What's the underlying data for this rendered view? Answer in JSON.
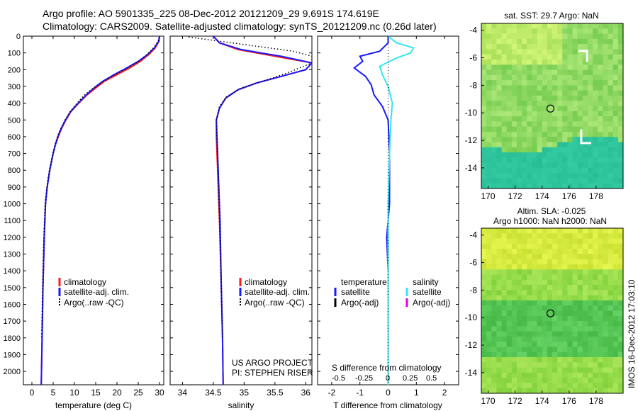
{
  "header": {
    "line1": "Argo profile: AO 5901335_225 08-Dec-2012 20121209_29 9.691S 174.619E",
    "line2": "Climatology: CARS2009. Satellite-adjusted climatology: synTS_20121209.nc (0.26d later)"
  },
  "watermark": "IMOS 16-Dec-2012 17:03:10",
  "colors": {
    "climatology": "#ff1a1a",
    "satellite": "#1a1aff",
    "argo": "#000000",
    "salinity_satellite": "#33e6f0",
    "salinity_argo": "#e600e6",
    "map_circle": "#000000"
  },
  "chart_data": [
    {
      "type": "line",
      "id": "temperature_profile",
      "xlabel": "temperature (deg C)",
      "ylabel": "",
      "xlim": [
        -2,
        31
      ],
      "ylim": [
        2080,
        0
      ],
      "xticks": [
        0,
        5,
        10,
        15,
        20,
        25,
        30
      ],
      "yticks": [
        0,
        100,
        200,
        300,
        400,
        500,
        600,
        700,
        800,
        900,
        1000,
        1100,
        1200,
        1300,
        1400,
        1500,
        1600,
        1700,
        1800,
        1900,
        2000
      ],
      "legend": [
        "climatology",
        "satellite-adj. clim.",
        "Argo(..raw -QC)"
      ],
      "series": [
        {
          "name": "climatology",
          "color": "#ff1a1a",
          "x": [
            30,
            29.9,
            29.0,
            27.5,
            25.5,
            23,
            20,
            17,
            15,
            13,
            11,
            9.2,
            8.0,
            7.0,
            6.2,
            5.5,
            5.0,
            4.2,
            3.6,
            3.2,
            2.9,
            2.6,
            2.4,
            2.2
          ],
          "y": [
            0,
            30,
            70,
            110,
            150,
            190,
            230,
            270,
            310,
            350,
            400,
            450,
            500,
            550,
            600,
            650,
            700,
            800,
            900,
            1000,
            1200,
            1500,
            1800,
            2080
          ]
        },
        {
          "name": "satellite-adj. clim.",
          "color": "#1a1aff",
          "x": [
            30,
            29.8,
            28.8,
            27.2,
            25.0,
            22.3,
            19.3,
            16.6,
            14.6,
            12.8,
            10.9,
            9.1,
            7.9,
            6.9,
            6.1,
            5.5,
            5.0,
            4.2,
            3.6,
            3.2,
            2.9,
            2.6,
            2.4,
            2.2
          ],
          "y": [
            0,
            30,
            70,
            110,
            150,
            190,
            230,
            270,
            310,
            350,
            400,
            450,
            500,
            550,
            600,
            650,
            700,
            800,
            900,
            1000,
            1200,
            1500,
            1800,
            2080
          ]
        },
        {
          "name": "Argo(..raw -QC)",
          "color": "#000000",
          "style": "dotted",
          "x": [
            30,
            29.7,
            28.6,
            27.0,
            25.2,
            22.5,
            19.5,
            16.8,
            14.4,
            12.4,
            10.6,
            9.0,
            7.8,
            6.8,
            6.0,
            5.4,
            4.9,
            4.1,
            3.5,
            3.1,
            2.8,
            2.5,
            2.3
          ],
          "y": [
            5,
            30,
            70,
            110,
            150,
            190,
            230,
            270,
            310,
            350,
            400,
            450,
            500,
            550,
            600,
            650,
            700,
            800,
            900,
            1000,
            1200,
            1500,
            1800
          ]
        }
      ]
    },
    {
      "type": "line",
      "id": "salinity_profile",
      "xlabel": "salinity",
      "ylabel": "",
      "xlim": [
        33.8,
        36.1
      ],
      "ylim": [
        2080,
        0
      ],
      "xticks": [
        34,
        34.5,
        35,
        35.5,
        36
      ],
      "legend": [
        "climatology",
        "satellite-adj. clim.",
        "Argo(..raw -QC)"
      ],
      "annotations": [
        "US ARGO PROJECT",
        "PI: STEPHEN RISER"
      ],
      "series": [
        {
          "name": "climatology",
          "color": "#ff1a1a",
          "x": [
            34.5,
            34.6,
            34.9,
            35.5,
            36.1,
            36.0,
            35.6,
            35.2,
            34.9,
            34.7,
            34.6,
            34.55,
            34.55,
            34.57,
            34.6,
            34.63,
            34.65,
            34.66
          ],
          "y": [
            0,
            40,
            80,
            120,
            160,
            200,
            240,
            280,
            320,
            370,
            430,
            500,
            600,
            800,
            1100,
            1500,
            1800,
            2080
          ]
        },
        {
          "name": "satellite-adj. clim.",
          "color": "#1a1aff",
          "x": [
            34.5,
            34.6,
            34.95,
            35.6,
            36.1,
            36.0,
            35.6,
            35.2,
            34.9,
            34.7,
            34.6,
            34.55,
            34.56,
            34.58,
            34.61,
            34.63,
            34.65,
            34.66
          ],
          "y": [
            0,
            40,
            80,
            120,
            160,
            200,
            240,
            280,
            320,
            370,
            430,
            500,
            600,
            800,
            1100,
            1500,
            1800,
            2080
          ]
        },
        {
          "name": "Argo(..raw -QC)",
          "color": "#000000",
          "style": "dotted",
          "x": [
            34.1,
            34.6,
            35.2,
            35.8,
            36.1,
            36.1,
            35.7,
            35.3,
            34.95,
            34.72,
            34.6,
            34.55,
            34.56,
            34.58,
            34.6,
            34.63,
            34.65
          ],
          "y": [
            5,
            30,
            60,
            90,
            120,
            160,
            220,
            270,
            310,
            360,
            420,
            500,
            600,
            800,
            1100,
            1500,
            1800
          ]
        }
      ]
    },
    {
      "type": "line",
      "id": "difference_profile",
      "xlabel": "T difference from climatology",
      "xlabel_top": "S difference from climatology",
      "xlim": [
        -2.5,
        2.5
      ],
      "ylim": [
        2080,
        0
      ],
      "xticks": [
        -2,
        -1,
        0,
        1,
        2
      ],
      "xticks_S": [
        "-0.5",
        "-0.25",
        "0",
        "0.25",
        "0.5"
      ],
      "legend": [
        "temperature",
        "satellite",
        "Argo(-adj)",
        "salinity",
        "satellite",
        "Argo(-adj)"
      ],
      "series": [
        {
          "name": "temperature satellite",
          "color": "#1a1aff",
          "x": [
            0,
            0,
            -0.3,
            -1.0,
            -0.9,
            -1.2,
            -0.8,
            -0.6,
            -0.5,
            -0.2,
            0,
            0.05,
            0.05,
            -0.05,
            0,
            0,
            0
          ],
          "y": [
            0,
            40,
            90,
            120,
            150,
            190,
            240,
            290,
            350,
            420,
            500,
            700,
            1000,
            1200,
            1400,
            1700,
            2080
          ]
        },
        {
          "name": "salinity satellite",
          "color": "#33e6f0",
          "x": [
            0,
            0.3,
            0.9,
            0.8,
            0.3,
            -0.3,
            -0.2,
            0,
            0.15,
            0.1,
            0.05,
            0,
            0,
            0
          ],
          "y": [
            0,
            40,
            70,
            100,
            130,
            180,
            230,
            300,
            400,
            500,
            700,
            1000,
            1500,
            2080
          ]
        }
      ]
    },
    {
      "type": "heatmap",
      "id": "sst_map",
      "title": "sat. SST: 29.7  Argo: NaN",
      "xlim": [
        169.5,
        180
      ],
      "ylim": [
        -15.5,
        -3.5
      ],
      "xticks": [
        170,
        172,
        174,
        176,
        178
      ],
      "yticks": [
        -4,
        -6,
        -8,
        -10,
        -12,
        -14
      ],
      "marker": {
        "lon": 174.619,
        "lat": -9.691
      }
    },
    {
      "type": "heatmap",
      "id": "sla_map",
      "title": "Altim. SLA: -0.025",
      "subtitle": "Argo h1000: NaN  h2000: NaN",
      "xlim": [
        169.5,
        180
      ],
      "ylim": [
        -15.5,
        -3.5
      ],
      "xticks": [
        170,
        172,
        174,
        176,
        178
      ],
      "yticks": [
        -4,
        -6,
        -8,
        -10,
        -12,
        -14
      ],
      "marker": {
        "lon": 174.619,
        "lat": -9.691
      }
    }
  ]
}
